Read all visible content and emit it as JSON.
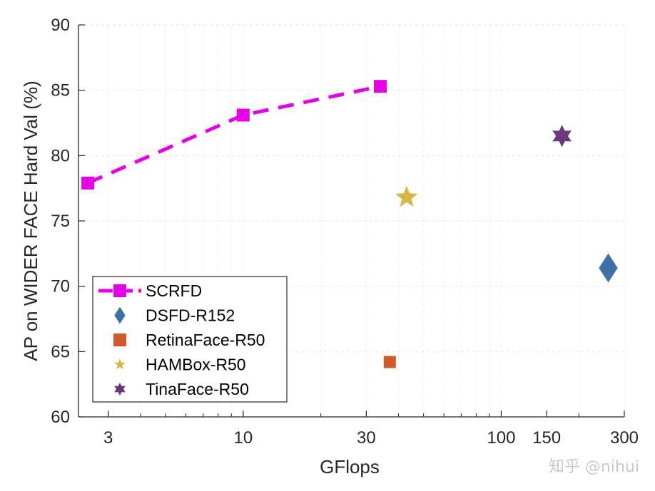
{
  "chart_data": {
    "type": "scatter",
    "xlabel": "GFlops",
    "ylabel": "AP on WIDER FACE Hard Val (%)",
    "xscale": "log",
    "xlim": [
      2.3,
      300
    ],
    "ylim": [
      60,
      90
    ],
    "xticks": [
      3,
      10,
      30,
      100,
      150,
      300
    ],
    "yticks": [
      60,
      65,
      70,
      75,
      80,
      85,
      90
    ],
    "grid": true,
    "legend_position": "bottom-left",
    "series": [
      {
        "name": "SCRFD",
        "marker": "square",
        "line": "dashed",
        "color": "#e600e6",
        "points": [
          {
            "x": 2.5,
            "y": 77.9
          },
          {
            "x": 10,
            "y": 83.1
          },
          {
            "x": 34,
            "y": 85.3
          }
        ]
      },
      {
        "name": "DSFD-R152",
        "marker": "diamond",
        "color": "#3f6fa8",
        "points": [
          {
            "x": 260,
            "y": 71.4
          }
        ]
      },
      {
        "name": "RetinaFace-R50",
        "marker": "square",
        "color": "#d2592a",
        "points": [
          {
            "x": 37,
            "y": 64.2
          }
        ]
      },
      {
        "name": "HAMBox-R50",
        "marker": "star5",
        "color": "#d8b646",
        "points": [
          {
            "x": 43,
            "y": 76.8
          }
        ]
      },
      {
        "name": "TinaFace-R50",
        "marker": "star6",
        "color": "#6a3a7a",
        "points": [
          {
            "x": 172,
            "y": 81.5
          }
        ]
      }
    ]
  },
  "watermark": "知乎 @nihui"
}
